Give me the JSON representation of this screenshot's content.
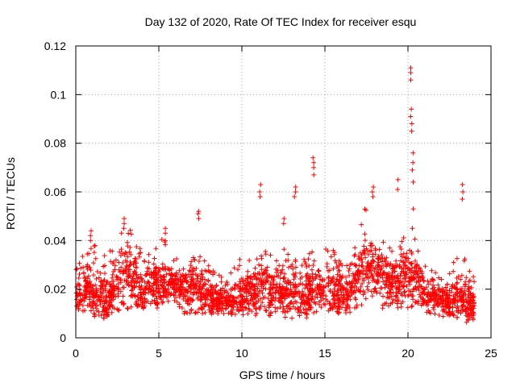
{
  "chart_data": {
    "type": "scatter",
    "title": "Day 132 of 2020, Rate Of TEC Index for receiver esqu",
    "xlabel": "GPS time / hours",
    "ylabel": "ROTI / TECUs",
    "xlim": [
      0,
      25
    ],
    "ylim": [
      0,
      0.12
    ],
    "xticks": [
      0,
      5,
      10,
      15,
      20,
      25
    ],
    "xtick_labels": [
      "0",
      "5",
      "10",
      "15",
      "20",
      "25"
    ],
    "yticks": [
      0,
      0.02,
      0.04,
      0.06,
      0.08,
      0.1,
      0.12
    ],
    "ytick_labels": [
      "0",
      "0.02",
      "0.04",
      "0.06",
      "0.08",
      "0.1",
      "0.12"
    ],
    "grid": true,
    "marker": "+",
    "color": "#ff0000",
    "series": [
      {
        "name": "ROTI",
        "envelope_description": "dense band of points across 0-24 h",
        "envelope": [
          {
            "x": 0.0,
            "low": 0.01,
            "mid": 0.018,
            "high": 0.033
          },
          {
            "x": 0.5,
            "low": 0.01,
            "mid": 0.02,
            "high": 0.036
          },
          {
            "x": 1.0,
            "low": 0.009,
            "mid": 0.02,
            "high": 0.04
          },
          {
            "x": 1.5,
            "low": 0.008,
            "mid": 0.016,
            "high": 0.034
          },
          {
            "x": 2.0,
            "low": 0.008,
            "mid": 0.017,
            "high": 0.036
          },
          {
            "x": 2.5,
            "low": 0.01,
            "mid": 0.025,
            "high": 0.04
          },
          {
            "x": 3.0,
            "low": 0.012,
            "mid": 0.032,
            "high": 0.048
          },
          {
            "x": 3.5,
            "low": 0.01,
            "mid": 0.024,
            "high": 0.044
          },
          {
            "x": 4.0,
            "low": 0.011,
            "mid": 0.02,
            "high": 0.036
          },
          {
            "x": 4.5,
            "low": 0.012,
            "mid": 0.024,
            "high": 0.034
          },
          {
            "x": 5.0,
            "low": 0.012,
            "mid": 0.022,
            "high": 0.04
          },
          {
            "x": 5.5,
            "low": 0.013,
            "mid": 0.024,
            "high": 0.042
          },
          {
            "x": 6.0,
            "low": 0.015,
            "mid": 0.022,
            "high": 0.034
          },
          {
            "x": 6.5,
            "low": 0.01,
            "mid": 0.02,
            "high": 0.03
          },
          {
            "x": 7.0,
            "low": 0.01,
            "mid": 0.022,
            "high": 0.033
          },
          {
            "x": 7.5,
            "low": 0.01,
            "mid": 0.02,
            "high": 0.034
          },
          {
            "x": 8.0,
            "low": 0.009,
            "mid": 0.017,
            "high": 0.03
          },
          {
            "x": 8.5,
            "low": 0.009,
            "mid": 0.016,
            "high": 0.028
          },
          {
            "x": 9.0,
            "low": 0.009,
            "mid": 0.016,
            "high": 0.026
          },
          {
            "x": 9.5,
            "low": 0.009,
            "mid": 0.016,
            "high": 0.03
          },
          {
            "x": 10.0,
            "low": 0.008,
            "mid": 0.018,
            "high": 0.033
          },
          {
            "x": 10.5,
            "low": 0.009,
            "mid": 0.02,
            "high": 0.034
          },
          {
            "x": 11.0,
            "low": 0.009,
            "mid": 0.022,
            "high": 0.04
          },
          {
            "x": 11.5,
            "low": 0.009,
            "mid": 0.02,
            "high": 0.035
          },
          {
            "x": 12.0,
            "low": 0.008,
            "mid": 0.019,
            "high": 0.036
          },
          {
            "x": 12.5,
            "low": 0.008,
            "mid": 0.02,
            "high": 0.04
          },
          {
            "x": 13.0,
            "low": 0.008,
            "mid": 0.019,
            "high": 0.038
          },
          {
            "x": 13.5,
            "low": 0.008,
            "mid": 0.018,
            "high": 0.036
          },
          {
            "x": 14.0,
            "low": 0.008,
            "mid": 0.019,
            "high": 0.034
          },
          {
            "x": 14.5,
            "low": 0.01,
            "mid": 0.022,
            "high": 0.04
          },
          {
            "x": 15.0,
            "low": 0.011,
            "mid": 0.022,
            "high": 0.04
          },
          {
            "x": 15.5,
            "low": 0.01,
            "mid": 0.02,
            "high": 0.036
          },
          {
            "x": 16.0,
            "low": 0.01,
            "mid": 0.02,
            "high": 0.034
          },
          {
            "x": 16.5,
            "low": 0.01,
            "mid": 0.02,
            "high": 0.032
          },
          {
            "x": 17.0,
            "low": 0.012,
            "mid": 0.026,
            "high": 0.042
          },
          {
            "x": 17.5,
            "low": 0.014,
            "mid": 0.032,
            "high": 0.058
          },
          {
            "x": 18.0,
            "low": 0.014,
            "mid": 0.03,
            "high": 0.05
          },
          {
            "x": 18.5,
            "low": 0.012,
            "mid": 0.026,
            "high": 0.042
          },
          {
            "x": 19.0,
            "low": 0.012,
            "mid": 0.024,
            "high": 0.038
          },
          {
            "x": 19.5,
            "low": 0.012,
            "mid": 0.024,
            "high": 0.04
          },
          {
            "x": 20.0,
            "low": 0.012,
            "mid": 0.026,
            "high": 0.045
          },
          {
            "x": 20.5,
            "low": 0.012,
            "mid": 0.024,
            "high": 0.04
          },
          {
            "x": 21.0,
            "low": 0.01,
            "mid": 0.02,
            "high": 0.032
          },
          {
            "x": 21.5,
            "low": 0.01,
            "mid": 0.018,
            "high": 0.028
          },
          {
            "x": 22.0,
            "low": 0.009,
            "mid": 0.016,
            "high": 0.026
          },
          {
            "x": 22.5,
            "low": 0.008,
            "mid": 0.015,
            "high": 0.028
          },
          {
            "x": 23.0,
            "low": 0.007,
            "mid": 0.018,
            "high": 0.036
          },
          {
            "x": 23.5,
            "low": 0.006,
            "mid": 0.016,
            "high": 0.032
          },
          {
            "x": 24.0,
            "low": 0.006,
            "mid": 0.014,
            "high": 0.025
          }
        ],
        "spikes": [
          {
            "x": 0.9,
            "values": [
              0.044,
              0.042,
              0.04
            ]
          },
          {
            "x": 2.9,
            "values": [
              0.049,
              0.047,
              0.045
            ]
          },
          {
            "x": 5.4,
            "values": [
              0.045,
              0.043,
              0.04
            ]
          },
          {
            "x": 7.4,
            "values": [
              0.052,
              0.051,
              0.049
            ]
          },
          {
            "x": 11.1,
            "values": [
              0.063,
              0.06,
              0.058
            ]
          },
          {
            "x": 12.5,
            "values": [
              0.049,
              0.047
            ]
          },
          {
            "x": 13.2,
            "values": [
              0.062,
              0.06,
              0.058
            ]
          },
          {
            "x": 14.3,
            "values": [
              0.074,
              0.072,
              0.07,
              0.067
            ]
          },
          {
            "x": 17.9,
            "values": [
              0.062,
              0.06,
              0.058
            ]
          },
          {
            "x": 19.4,
            "values": [
              0.065,
              0.061
            ]
          },
          {
            "x": 20.2,
            "values": [
              0.111,
              0.109,
              0.106,
              0.094,
              0.091,
              0.088,
              0.085
            ]
          },
          {
            "x": 20.3,
            "values": [
              0.076,
              0.072,
              0.069,
              0.064,
              0.053,
              0.045
            ]
          },
          {
            "x": 23.3,
            "values": [
              0.063,
              0.06,
              0.057
            ]
          }
        ]
      }
    ]
  }
}
